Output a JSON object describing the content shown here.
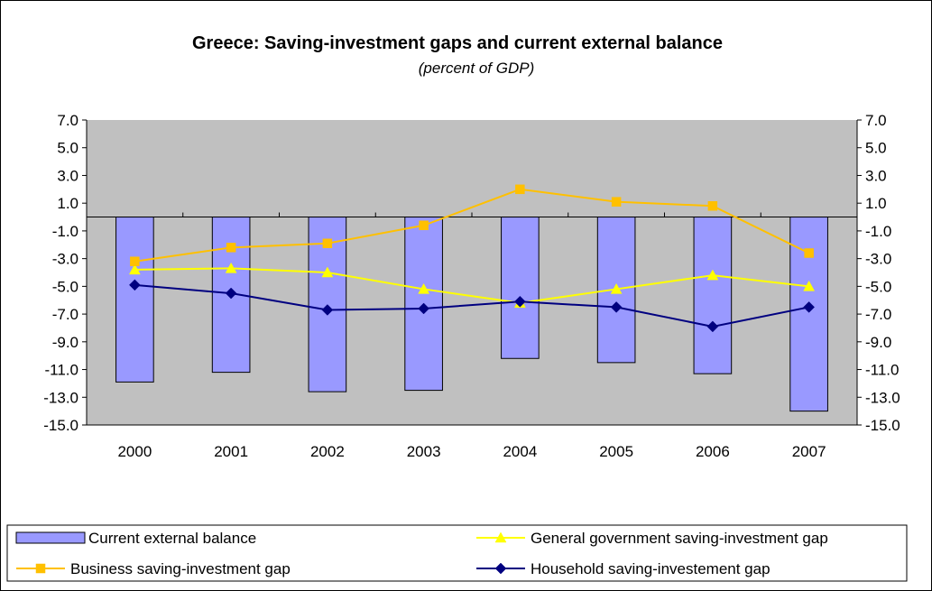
{
  "chart_data": {
    "type": "bar",
    "title": "Greece: Saving-investment gaps and current external balance",
    "subtitle": "(percent of GDP)",
    "categories": [
      "2000",
      "2001",
      "2002",
      "2003",
      "2004",
      "2005",
      "2006",
      "2007"
    ],
    "ylim": [
      -15.0,
      7.0
    ],
    "y_ticks": [
      "7.0",
      "5.0",
      "3.0",
      "1.0",
      "-1.0",
      "-3.0",
      "-5.0",
      "-7.0",
      "-9.0",
      "-11.0",
      "-13.0",
      "-15.0"
    ],
    "y_tick_values": [
      7,
      5,
      3,
      1,
      -1,
      -3,
      -5,
      -7,
      -9,
      -11,
      -13,
      -15
    ],
    "secondary_y_axis": true,
    "plot_background": "#C0C0C0",
    "legend_position": "bottom",
    "series": [
      {
        "name": "Current external balance",
        "kind": "bar",
        "color": "#9999FF",
        "values": [
          -11.9,
          -11.2,
          -12.6,
          -12.5,
          -10.2,
          -10.5,
          -11.3,
          -14.0
        ]
      },
      {
        "name": "General government saving-investment gap",
        "kind": "line",
        "marker": "triangle",
        "color": "#FFFF00",
        "values": [
          -3.8,
          -3.7,
          -4.0,
          -5.2,
          -6.2,
          -5.2,
          -4.2,
          -5.0
        ]
      },
      {
        "name": "Business saving-investment gap",
        "kind": "line",
        "marker": "square",
        "color": "#FFC000",
        "values": [
          -3.2,
          -2.2,
          -1.9,
          -0.6,
          2.0,
          1.1,
          0.8,
          -2.6
        ]
      },
      {
        "name": "Household saving-investement gap",
        "kind": "line",
        "marker": "diamond",
        "color": "#000080",
        "values": [
          -4.9,
          -5.5,
          -6.7,
          -6.6,
          -6.1,
          -6.5,
          -7.9,
          -6.5
        ]
      }
    ]
  }
}
